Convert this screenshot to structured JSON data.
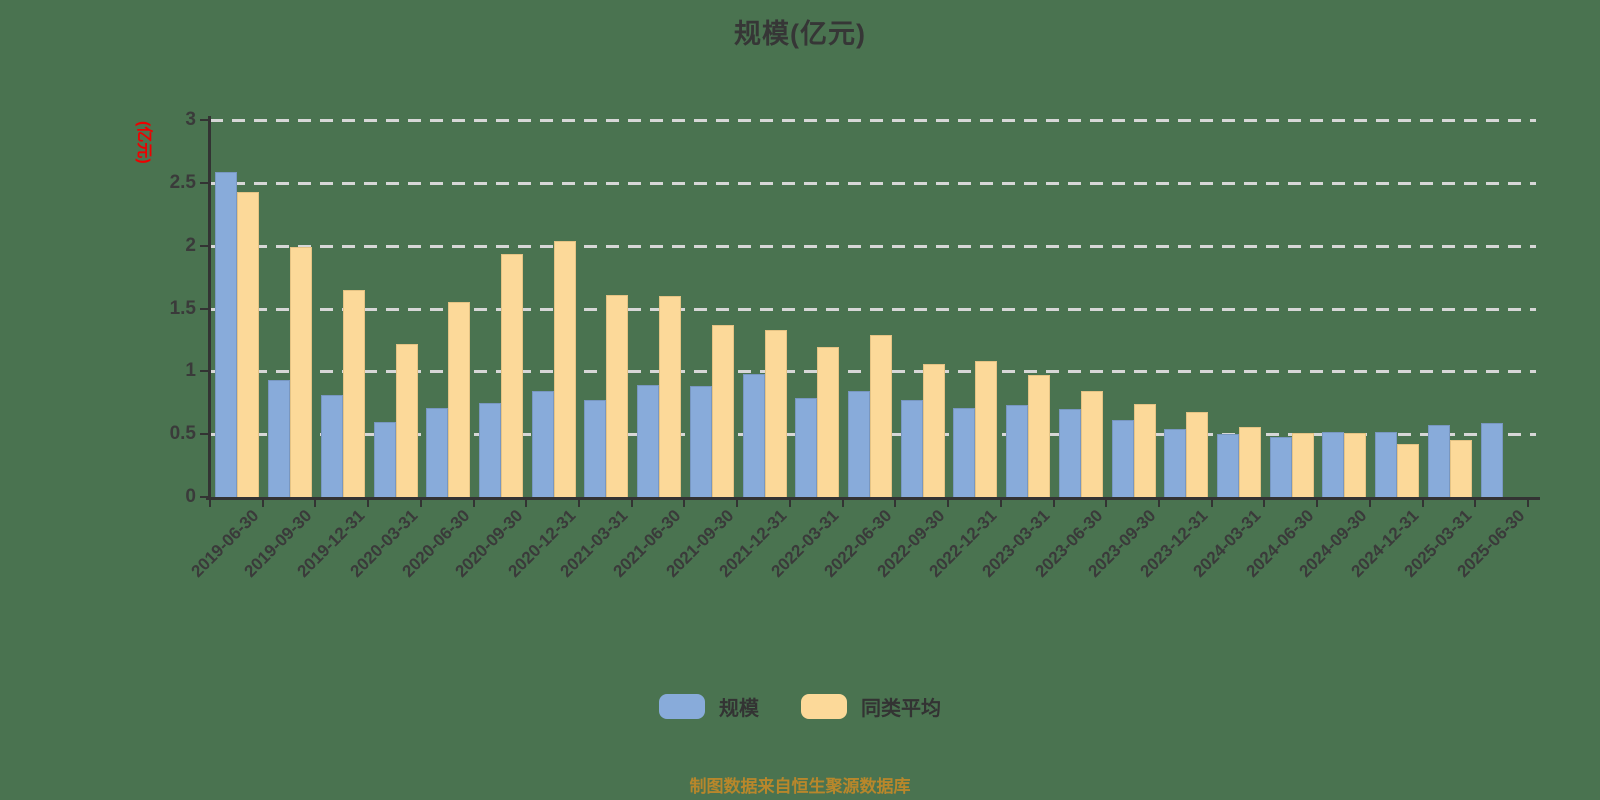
{
  "title": "规模(亿元)",
  "y_axis_unit": "(亿元)",
  "footer": {
    "source_note": "制图数据来自恒生聚源数据库"
  },
  "legend": [
    {
      "label": "规模",
      "color": "#88ABDA"
    },
    {
      "label": "同类平均",
      "color": "#FCD999"
    }
  ],
  "colors": {
    "background": "#4A7350",
    "series_scale": "#88ABDA",
    "series_average": "#FCD999",
    "gridline": "#D7D7D7",
    "axis": "#333333",
    "y_unit_label": "#EE0000",
    "source_note": "#B8872B",
    "text": "#3A3A3A"
  },
  "chart_data": {
    "type": "bar",
    "title": "规模(亿元)",
    "ylabel": "(亿元)",
    "xlabel": "",
    "ylim": [
      0,
      3
    ],
    "ytick_step": 0.5,
    "grid": "horizontal dashed",
    "legend_position": "bottom",
    "categories": [
      "2019-06-30",
      "2019-09-30",
      "2019-12-31",
      "2020-03-31",
      "2020-06-30",
      "2020-09-30",
      "2020-12-31",
      "2021-03-31",
      "2021-06-30",
      "2021-09-30",
      "2021-12-31",
      "2022-03-31",
      "2022-06-30",
      "2022-09-30",
      "2022-12-31",
      "2023-03-31",
      "2023-06-30",
      "2023-09-30",
      "2023-12-31",
      "2024-03-31",
      "2024-06-30",
      "2024-09-30",
      "2024-12-31",
      "2025-03-31",
      "2025-06-30"
    ],
    "series": [
      {
        "name": "规模",
        "color": "#88ABDA",
        "values": [
          2.59,
          0.93,
          0.81,
          0.6,
          0.71,
          0.75,
          0.84,
          0.77,
          0.89,
          0.88,
          0.98,
          0.79,
          0.84,
          0.77,
          0.71,
          0.73,
          0.7,
          0.61,
          0.54,
          0.5,
          0.48,
          0.52,
          0.52,
          0.57,
          0.59
        ]
      },
      {
        "name": "同类平均",
        "color": "#FCD999",
        "values": [
          2.43,
          1.99,
          1.65,
          1.22,
          1.55,
          1.93,
          2.04,
          1.61,
          1.6,
          1.37,
          1.33,
          1.19,
          1.29,
          1.06,
          1.08,
          0.97,
          0.84,
          0.74,
          0.68,
          0.56,
          0.51,
          0.51,
          0.42,
          0.45,
          null
        ]
      }
    ]
  }
}
